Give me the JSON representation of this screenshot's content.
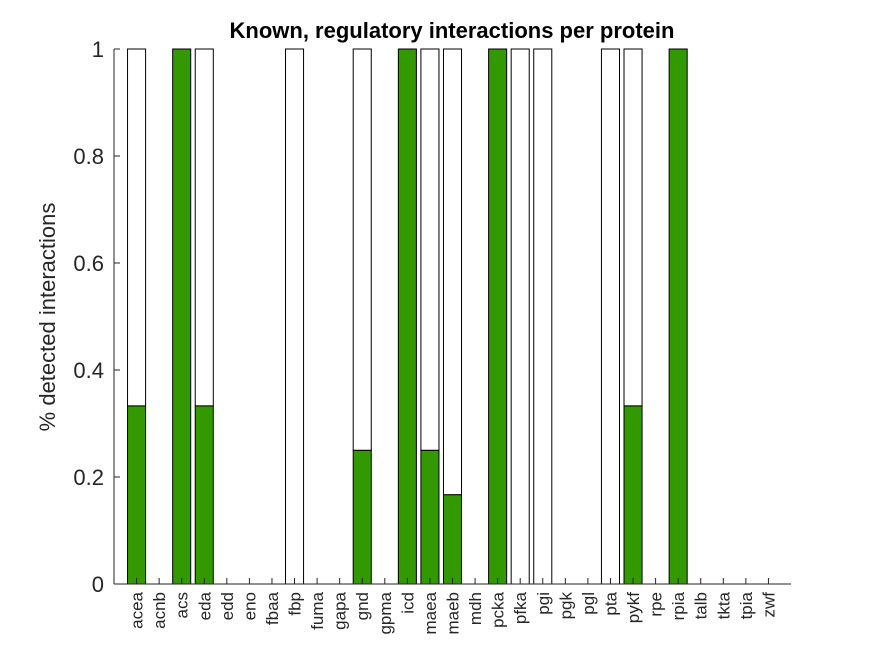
{
  "chart_data": {
    "type": "bar",
    "stacked": true,
    "title": "Known, regulatory interactions per protein",
    "ylabel": "% detected interactions",
    "xlabel": "",
    "ylim": [
      0,
      1
    ],
    "yticks": [
      0,
      0.2,
      0.4,
      0.6,
      0.8,
      1
    ],
    "ytick_labels": [
      "0",
      "0.2",
      "0.4",
      "0.6",
      "0.8",
      "1"
    ],
    "categories": [
      "acea",
      "acnb",
      "acs",
      "eda",
      "edd",
      "eno",
      "fbaa",
      "fbp",
      "fuma",
      "gapa",
      "gnd",
      "gpma",
      "icd",
      "maea",
      "maeb",
      "mdh",
      "pcka",
      "pfka",
      "pgi",
      "pgk",
      "pgl",
      "pta",
      "pykf",
      "rpe",
      "rpia",
      "talb",
      "tkta",
      "tpia",
      "zwf"
    ],
    "series": [
      {
        "color": "#339900",
        "values": [
          0.333,
          0,
          1,
          0.333,
          0,
          0,
          0,
          0,
          0,
          0,
          0.25,
          0,
          1,
          0.25,
          0.167,
          0,
          1,
          0,
          0,
          0,
          0,
          0,
          0.333,
          0,
          1,
          0,
          0,
          0,
          0
        ]
      },
      {
        "color": "#ffffff",
        "values": [
          0.667,
          0,
          0,
          0.667,
          0,
          0,
          0,
          1,
          0,
          0,
          0.75,
          0,
          0,
          0.75,
          0.833,
          0,
          0,
          1,
          1,
          0,
          0,
          1,
          0.667,
          0,
          0,
          0,
          0,
          0,
          0
        ]
      }
    ],
    "grid": false,
    "legend": "none",
    "axis_color": "#262626",
    "bar_edge_color": "#000000"
  }
}
